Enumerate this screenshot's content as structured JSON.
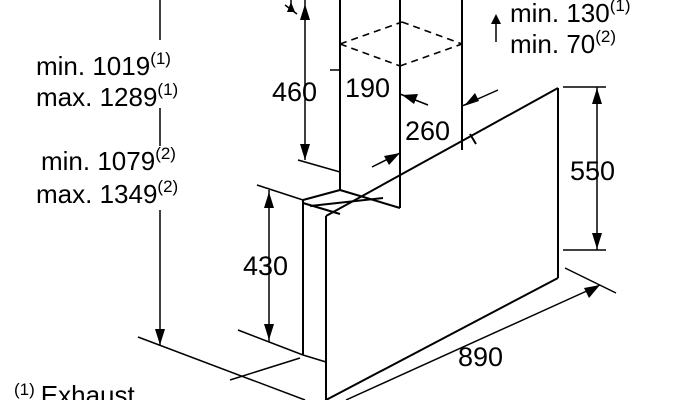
{
  "annotations": {
    "top_right": {
      "l1_text": "min. 130",
      "l1_sup": "(1)",
      "l2_text": "min. 70",
      "l2_sup": "(2)"
    },
    "left_upper": {
      "l1_text": "min. 1019",
      "l1_sup": "(1)",
      "l2_text": "max. 1289",
      "l2_sup": "(1)"
    },
    "left_lower": {
      "l1_text": "min. 1079",
      "l1_sup": "(2)",
      "l2_text": "max. 1349",
      "l2_sup": "(2)"
    },
    "footnote": {
      "marker": "(1)",
      "text": "Exhaust"
    }
  },
  "dimensions": {
    "chimney_height": "460",
    "chimney_width": "190",
    "chimney_depth": "260",
    "panel_height": "550",
    "base_height": "430",
    "overall_width": "890"
  }
}
